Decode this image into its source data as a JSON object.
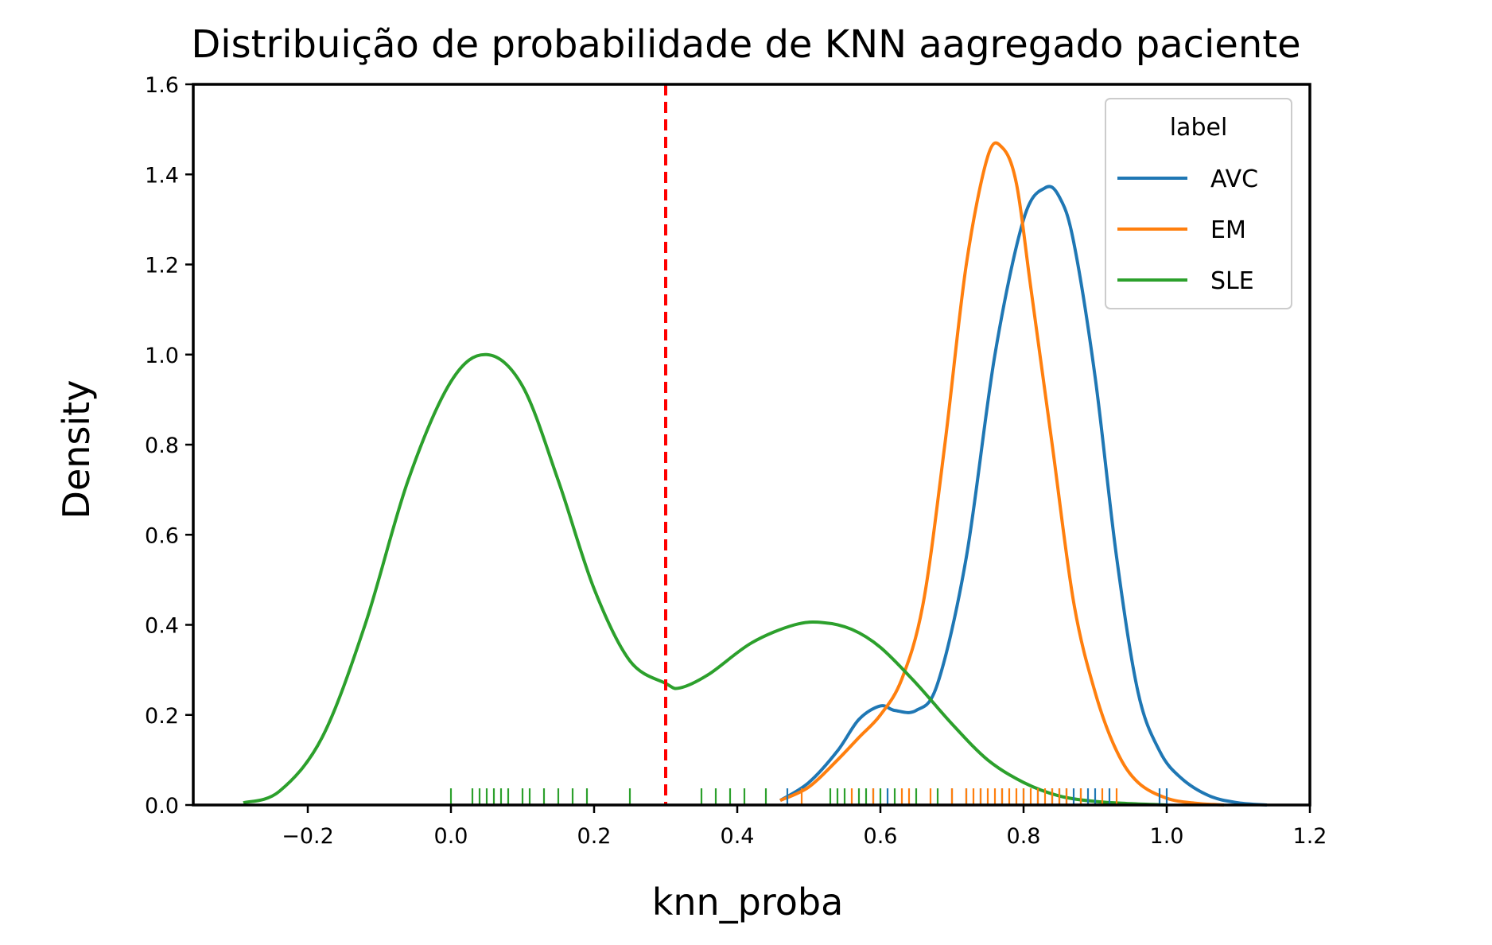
{
  "chart_data": {
    "type": "line",
    "title": "Distribuição de probabilidade de KNN aagregado paciente",
    "xlabel": "knn_proba",
    "ylabel": "Density",
    "xlim": [
      -0.36,
      1.2
    ],
    "ylim": [
      0,
      1.6
    ],
    "xticks": [
      -0.2,
      0.0,
      0.2,
      0.4,
      0.6,
      0.8,
      1.0,
      1.2
    ],
    "xtick_labels": [
      "−0.2",
      "0.0",
      "0.2",
      "0.4",
      "0.6",
      "0.8",
      "1.0",
      "1.2"
    ],
    "yticks": [
      0.0,
      0.2,
      0.4,
      0.6,
      0.8,
      1.0,
      1.2,
      1.4,
      1.6
    ],
    "ytick_labels": [
      "0.0",
      "0.2",
      "0.4",
      "0.6",
      "0.8",
      "1.0",
      "1.2",
      "1.4",
      "1.6"
    ],
    "threshold": {
      "x": 0.3,
      "color": "#ff0000",
      "style": "dashed"
    },
    "legend": {
      "title": "label",
      "position": "top-right"
    },
    "series": [
      {
        "name": "AVC",
        "color": "#1f77b4",
        "x": [
          0.46,
          0.5,
          0.54,
          0.57,
          0.6,
          0.62,
          0.65,
          0.68,
          0.72,
          0.76,
          0.8,
          0.83,
          0.85,
          0.87,
          0.9,
          0.93,
          0.96,
          0.99,
          1.02,
          1.06,
          1.1,
          1.14
        ],
        "y": [
          0.01,
          0.05,
          0.12,
          0.19,
          0.22,
          0.21,
          0.21,
          0.27,
          0.55,
          1.0,
          1.3,
          1.37,
          1.35,
          1.25,
          0.95,
          0.55,
          0.25,
          0.12,
          0.06,
          0.02,
          0.005,
          0.0
        ],
        "rug": [
          0.47,
          0.59,
          0.61,
          0.7,
          0.72,
          0.74,
          0.77,
          0.8,
          0.82,
          0.84,
          0.85,
          0.86,
          0.87,
          0.88,
          0.89,
          0.9,
          0.92,
          0.99,
          1.0
        ]
      },
      {
        "name": "EM",
        "color": "#ff7f0e",
        "x": [
          0.46,
          0.5,
          0.54,
          0.57,
          0.6,
          0.63,
          0.66,
          0.69,
          0.72,
          0.75,
          0.77,
          0.79,
          0.81,
          0.84,
          0.87,
          0.9,
          0.93,
          0.96,
          1.0,
          1.04,
          1.08
        ],
        "y": [
          0.01,
          0.04,
          0.1,
          0.15,
          0.2,
          0.28,
          0.45,
          0.8,
          1.2,
          1.44,
          1.46,
          1.38,
          1.15,
          0.8,
          0.45,
          0.25,
          0.12,
          0.05,
          0.015,
          0.004,
          0.0
        ],
        "rug": [
          0.49,
          0.56,
          0.59,
          0.63,
          0.64,
          0.67,
          0.7,
          0.72,
          0.73,
          0.74,
          0.75,
          0.76,
          0.77,
          0.78,
          0.79,
          0.8,
          0.81,
          0.82,
          0.83,
          0.84,
          0.85,
          0.86,
          0.88,
          0.91,
          0.93
        ]
      },
      {
        "name": "SLE",
        "color": "#2ca02c",
        "x": [
          -0.29,
          -0.24,
          -0.18,
          -0.12,
          -0.06,
          0.0,
          0.05,
          0.1,
          0.15,
          0.2,
          0.25,
          0.3,
          0.32,
          0.36,
          0.42,
          0.48,
          0.52,
          0.56,
          0.6,
          0.65,
          0.7,
          0.75,
          0.8,
          0.85,
          0.9,
          0.95,
          1.0
        ],
        "y": [
          0.005,
          0.03,
          0.15,
          0.4,
          0.72,
          0.94,
          1.0,
          0.93,
          0.72,
          0.48,
          0.32,
          0.27,
          0.26,
          0.29,
          0.36,
          0.4,
          0.405,
          0.39,
          0.35,
          0.27,
          0.18,
          0.1,
          0.05,
          0.02,
          0.008,
          0.003,
          0.0
        ],
        "rug": [
          0.0,
          0.03,
          0.04,
          0.05,
          0.06,
          0.07,
          0.08,
          0.1,
          0.11,
          0.13,
          0.15,
          0.17,
          0.19,
          0.25,
          0.35,
          0.37,
          0.39,
          0.41,
          0.44,
          0.53,
          0.54,
          0.55,
          0.57,
          0.58,
          0.6,
          0.62,
          0.65,
          0.68
        ]
      }
    ]
  }
}
